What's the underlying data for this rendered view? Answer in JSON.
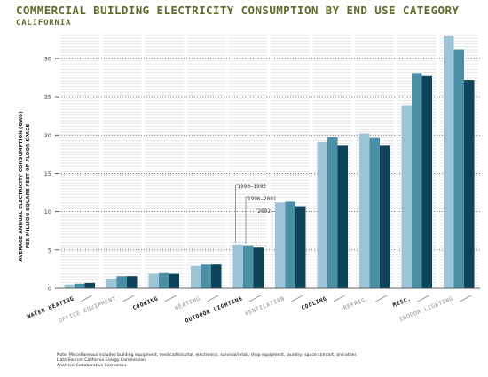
{
  "title": "COMMERCIAL BUILDING ELECTRICITY CONSUMPTION BY END USE CATEGORY",
  "subtitle": "CALIFORNIA",
  "notes": [
    "Note: Miscellaneous includes building equipment, medical/hospital, electronics, survival/retail, shop equipment, laundry, space comfort, and other.",
    "Data Source: California Energy Commission",
    "Analysis: Collaborative Economics"
  ],
  "colors": {
    "series": [
      "#9cc4d6",
      "#4a8fa6",
      "#0d4459"
    ],
    "title": "#5e6b2a"
  },
  "chart_data": {
    "type": "bar",
    "title": "COMMERCIAL BUILDING ELECTRICITY CONSUMPTION BY END USE CATEGORY",
    "subtitle": "CALIFORNIA",
    "ylabel_lines": [
      "AVERAGE ANNUAL ELECTRICITY CONSUMPTION (GWh)",
      "PER MILLION SQUARE FEET OF FLOOR SPACE"
    ],
    "ylim": [
      0,
      33
    ],
    "yticks": [
      0,
      5,
      10,
      15,
      20,
      25,
      30
    ],
    "categories": [
      "WATER HEATING",
      "OFFICE EQUIPMENT",
      "COOKING",
      "HEATING",
      "OUTDOOR LIGHTING",
      "VENTILATION",
      "COOLING",
      "REFRIG.",
      "MISC.",
      "INDOOR LIGHTING"
    ],
    "category_emphasis": [
      true,
      false,
      true,
      false,
      true,
      false,
      true,
      false,
      true,
      false
    ],
    "series": [
      {
        "name": "1990–1995",
        "values": [
          0.5,
          1.3,
          1.9,
          2.9,
          5.7,
          11.2,
          19.1,
          20.2,
          23.9,
          32.9
        ]
      },
      {
        "name": "1996–2001",
        "values": [
          0.6,
          1.6,
          2.0,
          3.1,
          5.6,
          11.3,
          19.7,
          19.6,
          28.1,
          31.2
        ]
      },
      {
        "name": "2002–",
        "values": [
          0.7,
          1.6,
          1.9,
          3.1,
          5.3,
          10.7,
          18.6,
          18.6,
          27.7,
          27.2
        ]
      }
    ],
    "legend": "annotation above OUTDOOR LIGHTING bars",
    "grid": true
  }
}
